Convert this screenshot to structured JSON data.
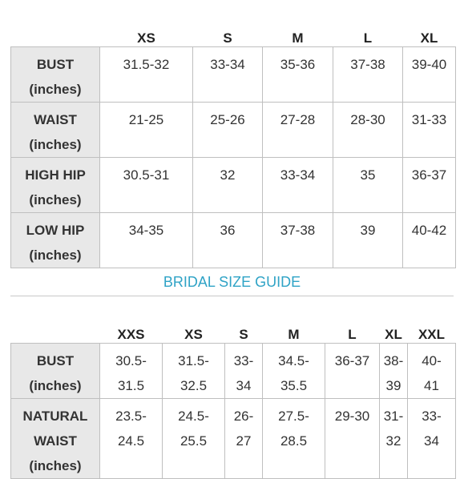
{
  "table1": {
    "columns": [
      "",
      "XS",
      "S",
      "M",
      "L",
      "XL"
    ],
    "rows": [
      {
        "label": "BUST\n(inches)",
        "values": [
          "31.5-32",
          "33-34",
          "35-36",
          "37-38",
          "39-40"
        ]
      },
      {
        "label": "WAIST\n(inches)",
        "values": [
          "21-25",
          "25-26",
          "27-28",
          "28-30",
          "31-33"
        ]
      },
      {
        "label": "HIGH HIP\n(inches)",
        "values": [
          "30.5-31",
          "32",
          "33-34",
          "35",
          "36-37"
        ]
      },
      {
        "label": "LOW HIP\n(inches)",
        "values": [
          "34-35",
          "36",
          "37-38",
          "39",
          "40-42"
        ]
      }
    ]
  },
  "bridal_title": "BRIDAL SIZE GUIDE",
  "table2": {
    "columns": [
      "",
      "XXS",
      "XS",
      "S",
      "M",
      "L",
      "XL",
      "XXL"
    ],
    "rows": [
      {
        "label": "BUST\n(inches)",
        "values": [
          "30.5-\n31.5",
          "31.5-\n32.5",
          "33-\n34",
          "34.5-\n35.5",
          "36-37",
          "38-\n39",
          "40-\n41"
        ]
      },
      {
        "label": "NATURAL\nWAIST\n(inches)",
        "values": [
          "23.5-\n24.5",
          "24.5-\n25.5",
          "26-\n27",
          "27.5-\n28.5",
          "29-30",
          "31-\n32",
          "33-\n34"
        ]
      }
    ]
  },
  "colors": {
    "accent": "#2fa3c6",
    "header_bg": "#e8e8e8",
    "border": "#bfbfbf"
  }
}
